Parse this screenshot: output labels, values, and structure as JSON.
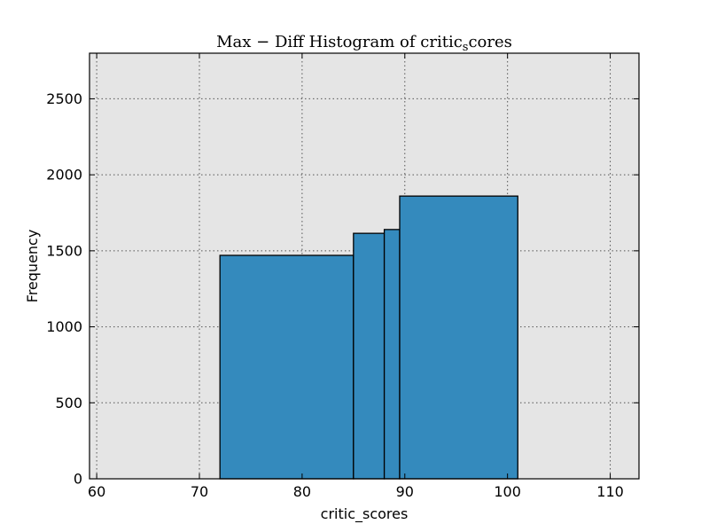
{
  "chart_data": {
    "type": "bar",
    "title": {
      "pre": "Max − Diff Histogram of critic",
      "sub": "s",
      "post": "cores"
    },
    "xlabel": "critic_scores",
    "ylabel": "Frequency",
    "xlim": [
      59.3,
      112.8
    ],
    "ylim": [
      0,
      2800
    ],
    "xticks": [
      60,
      70,
      80,
      90,
      100,
      110
    ],
    "yticks": [
      0,
      500,
      1000,
      1500,
      2000,
      2500
    ],
    "grid": true,
    "colors": {
      "bar_fill": "#348abd",
      "bar_edge": "#000000",
      "plot_bg": "#e5e5e5",
      "grid": "#555555"
    },
    "bins": [
      {
        "x0": 72,
        "x1": 85,
        "value": 1470
      },
      {
        "x0": 85,
        "x1": 88,
        "value": 1615
      },
      {
        "x0": 88,
        "x1": 89.5,
        "value": 1640
      },
      {
        "x0": 89.5,
        "x1": 101,
        "value": 1860
      }
    ]
  }
}
